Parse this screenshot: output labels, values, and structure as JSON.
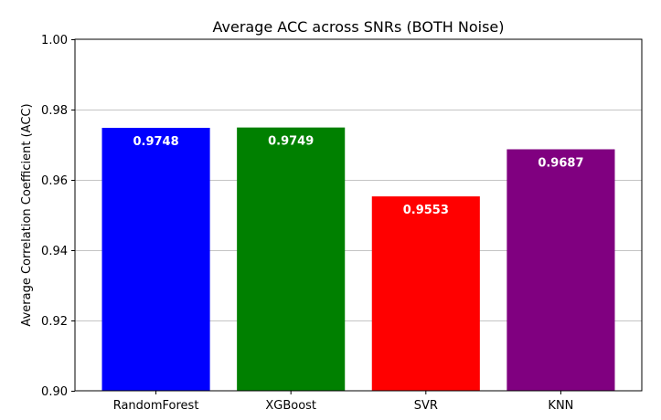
{
  "chart_data": {
    "type": "bar",
    "title": "Average ACC across SNRs (BOTH Noise)",
    "xlabel": "",
    "ylabel": "Average Correlation Coefficient (ACC)",
    "categories": [
      "RandomForest",
      "XGBoost",
      "SVR",
      "KNN"
    ],
    "values": [
      0.9748,
      0.9749,
      0.9553,
      0.9687
    ],
    "data_labels": [
      "0.9748",
      "0.9749",
      "0.9553",
      "0.9687"
    ],
    "colors": [
      "#0000ff",
      "#008000",
      "#ff0000",
      "#800080"
    ],
    "ylim": [
      0.9,
      1.0
    ],
    "yticks": [
      0.9,
      0.92,
      0.94,
      0.96,
      0.98,
      1.0
    ],
    "ytick_labels": [
      "0.90",
      "0.92",
      "0.94",
      "0.96",
      "0.98",
      "1.00"
    ],
    "grid": "y-axis",
    "legend": "none"
  }
}
